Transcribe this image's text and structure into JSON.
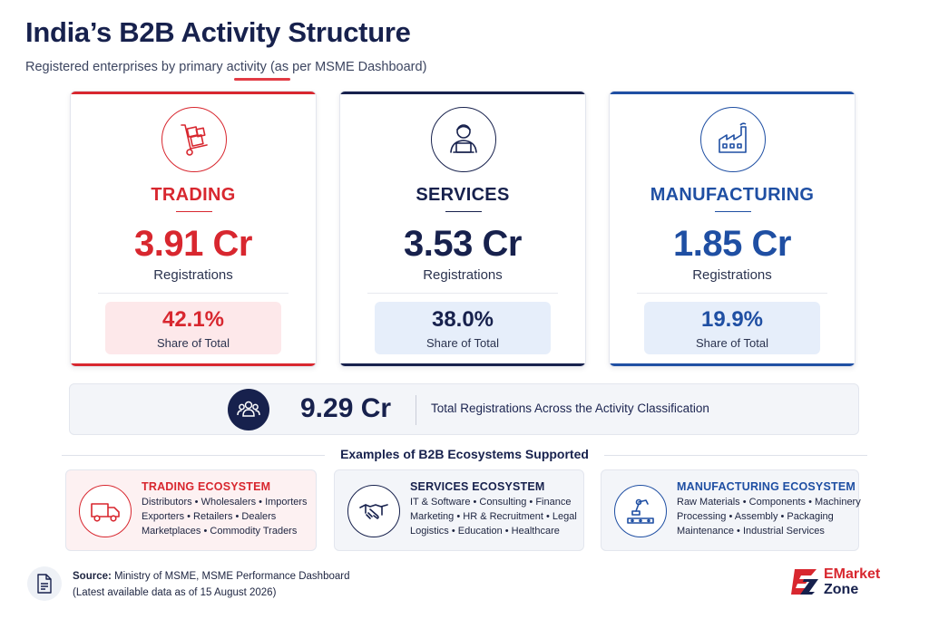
{
  "header": {
    "title": "India’s B2B Activity Structure",
    "subtitle": "Registered enterprises by primary activity (as per MSME Dashboard)"
  },
  "colors": {
    "trading": "#d8272f",
    "services": "#17214d",
    "manufacturing": "#1f4fa3",
    "trading_bg": "#fde8ea",
    "blue_bg": "#e6eefa"
  },
  "cards": [
    {
      "category": "TRADING",
      "icon": "hand-truck-boxes-icon",
      "value": "3.91 Cr",
      "value_label": "Registrations",
      "share": "42.1%",
      "share_label": "Share of Total"
    },
    {
      "category": "SERVICES",
      "icon": "person-laptop-icon",
      "value": "3.53 Cr",
      "value_label": "Registrations",
      "share": "38.0%",
      "share_label": "Share of Total"
    },
    {
      "category": "MANUFACTURING",
      "icon": "factory-icon",
      "value": "1.85 Cr",
      "value_label": "Registrations",
      "share": "19.9%",
      "share_label": "Share of Total"
    }
  ],
  "total": {
    "icon": "people-group-icon",
    "value": "9.29 Cr",
    "label": "Total Registrations Across the Activity Classification"
  },
  "examples": {
    "title": "Examples of B2B Ecosystems Supported",
    "ecosystems": [
      {
        "title": "TRADING ECOSYSTEM",
        "icon": "delivery-truck-icon",
        "lines": [
          "Distributors • Wholesalers • Importers",
          "Exporters • Retailers • Dealers",
          "Marketplaces • Commodity Traders"
        ]
      },
      {
        "title": "SERVICES ECOSYSTEM",
        "icon": "handshake-icon",
        "lines": [
          "IT & Software • Consulting • Finance",
          "Marketing • HR & Recruitment • Legal",
          "Logistics • Education • Healthcare"
        ]
      },
      {
        "title": "MANUFACTURING ECOSYSTEM",
        "icon": "robotic-arm-icon",
        "lines": [
          "Raw Materials • Components • Machinery",
          "Processing • Assembly • Packaging",
          "Maintenance • Industrial Services"
        ]
      }
    ]
  },
  "footer": {
    "icon": "document-icon",
    "source_label": "Source:",
    "source_text": "Ministry of MSME, MSME Performance Dashboard",
    "note": "(Latest available data as of 15 August 2026)",
    "logo_line1": "EMarket",
    "logo_line2": "Zone"
  }
}
